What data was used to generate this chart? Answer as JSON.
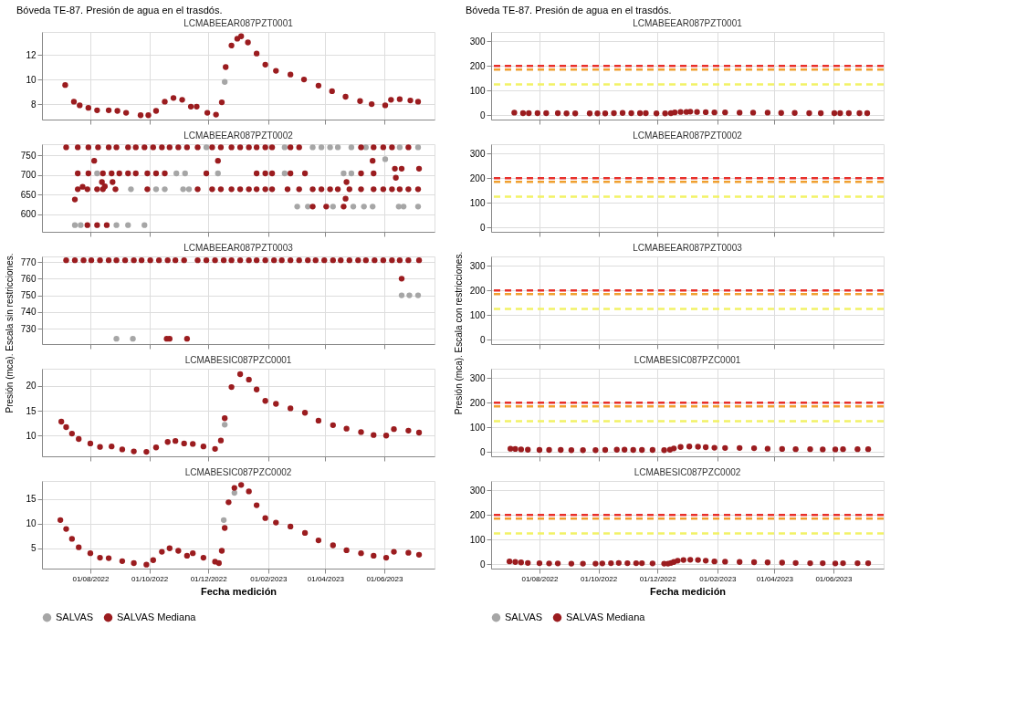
{
  "chart_data": [
    {
      "type": "scatter",
      "title": "Bóveda TE-87. Presión de agua en el trasdós.",
      "subtitle": "LCMABEEAR087PZT0001",
      "marker": "circle",
      "grid": true,
      "tick_labels": "y",
      "xlim": [
        "2022-06-12",
        "2023-07-23"
      ],
      "xticks": [
        {
          "value": "2022-08-01",
          "label": null
        },
        {
          "value": "2022-10-01",
          "label": null
        },
        {
          "value": "2022-12-01",
          "label": null
        },
        {
          "value": "2023-02-01",
          "label": null
        },
        {
          "value": "2023-04-01",
          "label": null
        },
        {
          "value": "2023-06-01",
          "label": null
        }
      ],
      "ylim": [
        6.75,
        13.85
      ],
      "yticks": [
        8,
        10,
        12
      ],
      "series": [
        {
          "color": "#a6a6a6",
          "x": [
            "2022-12-18"
          ],
          "values": [
            9.8
          ]
        },
        {
          "color": "#9b1c1f",
          "x": [
            "2022-07-06",
            "2022-07-15",
            "2022-07-21",
            "2022-07-30",
            "2022-08-08",
            "2022-08-20",
            "2022-08-29",
            "2022-09-07",
            "2022-09-22",
            "2022-09-30",
            "2022-10-08",
            "2022-10-17",
            "2022-10-26",
            "2022-11-04",
            "2022-11-13",
            "2022-11-19",
            "2022-11-30",
            "2022-12-09",
            "2022-12-15",
            "2022-12-19",
            "2022-12-25",
            "2022-12-31",
            "2023-01-04",
            "2023-01-11",
            "2023-01-20",
            "2023-01-29",
            "2023-02-09",
            "2023-02-24",
            "2023-03-10",
            "2023-03-25",
            "2023-04-08",
            "2023-04-22",
            "2023-05-07",
            "2023-05-19",
            "2023-06-02",
            "2023-06-08",
            "2023-06-17",
            "2023-06-28",
            "2023-07-06"
          ],
          "values": [
            9.55,
            8.2,
            7.9,
            7.7,
            7.5,
            7.5,
            7.45,
            7.3,
            7.1,
            7.1,
            7.45,
            8.2,
            8.5,
            8.35,
            7.8,
            7.8,
            7.3,
            7.15,
            8.15,
            11,
            12.75,
            13.3,
            13.5,
            13.0,
            12.1,
            11.2,
            10.7,
            10.4,
            10.0,
            9.5,
            9.05,
            8.6,
            8.25,
            8.0,
            7.9,
            8.35,
            8.4,
            8.3,
            8.2
          ]
        }
      ]
    },
    {
      "type": "scatter",
      "subtitle": "LCMABEEAR087PZT0002",
      "marker": "circle",
      "grid": true,
      "tick_labels": "y",
      "xlim": [
        "2022-06-12",
        "2023-07-23"
      ],
      "xticks": [
        {
          "value": "2022-08-01",
          "label": null
        },
        {
          "value": "2022-10-01",
          "label": null
        },
        {
          "value": "2022-12-01",
          "label": null
        },
        {
          "value": "2023-02-01",
          "label": null
        },
        {
          "value": "2023-04-01",
          "label": null
        },
        {
          "value": "2023-06-01",
          "label": null
        }
      ],
      "ylim": [
        556,
        778
      ],
      "yticks": [
        600,
        650,
        700,
        750
      ],
      "series": [
        {
          "color": "#a6a6a6",
          "x": [
            "2022-11-29",
            "2023-02-18",
            "2023-03-19",
            "2023-03-28",
            "2023-04-06",
            "2023-04-14",
            "2023-04-28",
            "2023-05-13",
            "2023-06-17",
            "2023-07-06",
            "2022-08-08",
            "2022-10-29",
            "2022-11-07",
            "2022-12-11",
            "2023-02-18",
            "2023-04-20",
            "2023-04-28",
            "2022-09-12",
            "2022-10-08",
            "2022-10-17",
            "2022-11-05",
            "2022-11-11",
            "2023-03-03",
            "2023-03-14",
            "2023-04-09",
            "2023-04-30",
            "2023-05-11",
            "2023-05-20",
            "2023-06-16",
            "2023-06-21",
            "2023-07-06",
            "2022-07-16",
            "2022-07-22",
            "2022-08-28",
            "2022-09-09",
            "2022-09-26",
            "2023-06-02"
          ],
          "values": [
            770,
            770,
            770,
            770,
            770,
            770,
            770,
            770,
            770,
            770,
            704,
            704,
            704,
            704,
            704,
            704,
            704,
            664,
            664,
            664,
            664,
            664,
            620,
            620,
            620,
            620,
            620,
            620,
            620,
            620,
            620,
            573,
            573,
            573,
            573,
            573,
            740
          ]
        },
        {
          "color": "#9b1c1f",
          "x": [
            "2022-07-07",
            "2022-07-19",
            "2022-07-30",
            "2022-08-09",
            "2022-08-20",
            "2022-08-28",
            "2022-09-09",
            "2022-09-17",
            "2022-09-26",
            "2022-10-05",
            "2022-10-14",
            "2022-10-22",
            "2022-10-31",
            "2022-11-09",
            "2022-11-20",
            "2022-12-05",
            "2022-12-14",
            "2022-12-25",
            "2023-01-03",
            "2023-01-12",
            "2023-01-20",
            "2023-01-29",
            "2023-02-05",
            "2023-02-24",
            "2023-03-05",
            "2023-05-08",
            "2023-05-21",
            "2023-05-31",
            "2023-06-09",
            "2023-06-26",
            "2022-07-19",
            "2022-07-30",
            "2022-08-14",
            "2022-08-23",
            "2022-08-31",
            "2022-09-09",
            "2022-09-17",
            "2022-09-29",
            "2022-10-08",
            "2022-10-17",
            "2022-11-29",
            "2023-01-20",
            "2023-01-29",
            "2023-02-05",
            "2023-02-24",
            "2023-03-11",
            "2023-05-08",
            "2023-05-21",
            "2022-07-19",
            "2022-07-29",
            "2022-08-08",
            "2022-08-14",
            "2022-08-27",
            "2022-09-29",
            "2022-11-20",
            "2022-12-05",
            "2022-12-14",
            "2022-12-25",
            "2023-01-03",
            "2023-01-12",
            "2023-01-20",
            "2023-01-29",
            "2023-02-05",
            "2023-02-21",
            "2023-03-05",
            "2023-03-19",
            "2023-03-28",
            "2023-04-06",
            "2023-04-14",
            "2023-04-26",
            "2023-05-08",
            "2023-05-21",
            "2023-05-31",
            "2023-06-09",
            "2023-06-17",
            "2023-06-26",
            "2023-07-06",
            "2023-03-19",
            "2023-04-02",
            "2023-04-20",
            "2022-07-29",
            "2022-08-08",
            "2022-08-18",
            "2022-08-05",
            "2022-12-11",
            "2023-05-20",
            "2022-07-16",
            "2022-07-24",
            "2022-08-13",
            "2022-08-16",
            "2022-08-24",
            "2023-04-23",
            "2023-04-22",
            "2023-06-12",
            "2023-06-19",
            "2023-06-13",
            "2023-07-07"
          ],
          "values": [
            770,
            770,
            770,
            770,
            770,
            770,
            770,
            770,
            770,
            770,
            770,
            770,
            770,
            770,
            770,
            770,
            770,
            770,
            770,
            770,
            770,
            770,
            770,
            770,
            770,
            770,
            770,
            770,
            770,
            770,
            704,
            704,
            704,
            704,
            704,
            704,
            704,
            704,
            704,
            704,
            704,
            704,
            704,
            704,
            704,
            704,
            704,
            704,
            664,
            664,
            664,
            664,
            664,
            664,
            664,
            664,
            664,
            664,
            664,
            664,
            664,
            664,
            664,
            664,
            664,
            664,
            664,
            664,
            664,
            664,
            664,
            664,
            664,
            664,
            664,
            664,
            664,
            620,
            620,
            620,
            573,
            573,
            573,
            736,
            736,
            736,
            638,
            670,
            682,
            671,
            682,
            682,
            640,
            716,
            716,
            693,
            716
          ]
        }
      ]
    },
    {
      "type": "scatter",
      "subtitle": "LCMABEEAR087PZT0003",
      "ylabel": "Presión (mca). Escala sin restricciones.",
      "marker": "circle",
      "grid": true,
      "tick_labels": "y",
      "xlim": [
        "2022-06-12",
        "2023-07-23"
      ],
      "xticks": [
        {
          "value": "2022-08-01",
          "label": null
        },
        {
          "value": "2022-10-01",
          "label": null
        },
        {
          "value": "2022-12-01",
          "label": null
        },
        {
          "value": "2023-02-01",
          "label": null
        },
        {
          "value": "2023-04-01",
          "label": null
        },
        {
          "value": "2023-06-01",
          "label": null
        }
      ],
      "ylim": [
        720.8,
        773.3
      ],
      "yticks": [
        730,
        740,
        750,
        760,
        770
      ],
      "series": [
        {
          "color": "#a6a6a6",
          "x": [
            "2022-08-28",
            "2022-09-14",
            "2023-06-19",
            "2023-06-27",
            "2023-07-06"
          ],
          "values": [
            724,
            724,
            750,
            750,
            750
          ]
        },
        {
          "color": "#9b1c1f",
          "x": [
            "2022-07-07",
            "2022-07-16",
            "2022-07-25",
            "2022-08-02",
            "2022-08-11",
            "2022-08-20",
            "2022-08-28",
            "2022-09-06",
            "2022-09-15",
            "2022-09-23",
            "2022-10-02",
            "2022-10-11",
            "2022-10-20",
            "2022-10-28",
            "2022-11-06",
            "2022-11-20",
            "2022-11-29",
            "2022-12-08",
            "2022-12-17",
            "2022-12-25",
            "2023-01-03",
            "2023-01-12",
            "2023-01-20",
            "2023-01-29",
            "2023-02-07",
            "2023-02-15",
            "2023-02-24",
            "2023-03-05",
            "2023-03-14",
            "2023-03-22",
            "2023-03-31",
            "2023-04-09",
            "2023-04-17",
            "2023-04-26",
            "2023-05-05",
            "2023-05-13",
            "2023-05-22",
            "2023-05-31",
            "2023-06-09",
            "2023-06-17",
            "2023-06-26",
            "2023-07-07",
            "2023-06-19",
            "2022-10-19",
            "2022-10-22",
            "2022-11-09"
          ],
          "values": [
            771,
            771,
            771,
            771,
            771,
            771,
            771,
            771,
            771,
            771,
            771,
            771,
            771,
            771,
            771,
            771,
            771,
            771,
            771,
            771,
            771,
            771,
            771,
            771,
            771,
            771,
            771,
            771,
            771,
            771,
            771,
            771,
            771,
            771,
            771,
            771,
            771,
            771,
            771,
            771,
            771,
            771,
            760,
            724,
            724,
            724
          ]
        }
      ]
    },
    {
      "type": "scatter",
      "subtitle": "LCMABESIC087PZC0001",
      "marker": "circle",
      "grid": true,
      "tick_labels": "y",
      "xlim": [
        "2022-06-12",
        "2023-07-23"
      ],
      "xticks": [
        {
          "value": "2022-08-01",
          "label": null
        },
        {
          "value": "2022-10-01",
          "label": null
        },
        {
          "value": "2022-12-01",
          "label": null
        },
        {
          "value": "2023-02-01",
          "label": null
        },
        {
          "value": "2023-04-01",
          "label": null
        },
        {
          "value": "2023-06-01",
          "label": null
        }
      ],
      "ylim": [
        5.8,
        23.5
      ],
      "yticks": [
        10,
        15,
        20
      ],
      "series": [
        {
          "color": "#a6a6a6",
          "x": [
            "2022-12-18"
          ],
          "values": [
            12.2
          ]
        },
        {
          "color": "#9b1c1f",
          "x": [
            "2022-07-02",
            "2022-07-07",
            "2022-07-13",
            "2022-07-20",
            "2022-08-01",
            "2022-08-11",
            "2022-08-23",
            "2022-09-03",
            "2022-09-15",
            "2022-09-28",
            "2022-10-08",
            "2022-10-20",
            "2022-10-28",
            "2022-11-06",
            "2022-11-15",
            "2022-11-26",
            "2022-12-08",
            "2022-12-14",
            "2022-12-18",
            "2022-12-25",
            "2023-01-03",
            "2023-01-12",
            "2023-01-20",
            "2023-01-29",
            "2023-02-09",
            "2023-02-24",
            "2023-03-11",
            "2023-03-25",
            "2023-04-09",
            "2023-04-23",
            "2023-05-08",
            "2023-05-21",
            "2023-06-03",
            "2023-06-11",
            "2023-06-26",
            "2023-07-07"
          ],
          "values": [
            12.8,
            11.7,
            10.4,
            9.3,
            8.4,
            7.7,
            7.8,
            7.2,
            6.8,
            6.7,
            7.6,
            8.7,
            8.9,
            8.4,
            8.3,
            7.8,
            7.3,
            9,
            13.5,
            19.8,
            22.4,
            21.3,
            19.3,
            17,
            16.4,
            15.5,
            14.6,
            13,
            12.1,
            11.4,
            10.7,
            10.1,
            10,
            11.3,
            11,
            10.6
          ]
        }
      ]
    },
    {
      "type": "scatter",
      "subtitle": "LCMABESIC087PZC0002",
      "xlabel": "Fecha medición",
      "legend": "bottom",
      "marker": "circle",
      "grid": true,
      "xlim": [
        "2022-06-12",
        "2023-07-23"
      ],
      "xticks": [
        {
          "value": "2022-08-01",
          "label": "01/08/2022"
        },
        {
          "value": "2022-10-01",
          "label": "01/10/2022"
        },
        {
          "value": "2022-12-01",
          "label": "01/12/2022"
        },
        {
          "value": "2023-02-01",
          "label": "01/02/2023"
        },
        {
          "value": "2023-04-01",
          "label": "01/04/2023"
        },
        {
          "value": "2023-06-01",
          "label": "01/06/2023"
        }
      ],
      "ylim": [
        0.9,
        18.6
      ],
      "yticks": [
        5,
        10,
        15
      ],
      "series": [
        {
          "name": "SALVAS",
          "color": "#a6a6a6",
          "x": [
            "2022-12-17",
            "2022-12-28"
          ],
          "values": [
            10.7,
            16.2
          ]
        },
        {
          "name": "SALVAS Mediana",
          "color": "#9b1c1f",
          "x": [
            "2022-07-01",
            "2022-07-07",
            "2022-07-13",
            "2022-07-20",
            "2022-08-01",
            "2022-08-11",
            "2022-08-20",
            "2022-09-03",
            "2022-09-15",
            "2022-09-28",
            "2022-10-05",
            "2022-10-14",
            "2022-10-22",
            "2022-10-31",
            "2022-11-09",
            "2022-11-15",
            "2022-11-26",
            "2022-12-08",
            "2022-12-12",
            "2022-12-15",
            "2022-12-18",
            "2022-12-22",
            "2022-12-28",
            "2023-01-04",
            "2023-01-12",
            "2023-01-20",
            "2023-01-29",
            "2023-02-09",
            "2023-02-24",
            "2023-03-11",
            "2023-03-25",
            "2023-04-09",
            "2023-04-23",
            "2023-05-08",
            "2023-05-21",
            "2023-06-03",
            "2023-06-11",
            "2023-06-26",
            "2023-07-07"
          ],
          "values": [
            10.7,
            8.9,
            6.9,
            5.2,
            4,
            3.1,
            3.0,
            2.4,
            2.0,
            1.7,
            2.6,
            4.3,
            5,
            4.5,
            3.5,
            4.0,
            3.1,
            2.3,
            2.0,
            4.5,
            9.1,
            14.3,
            17.2,
            17.8,
            16.5,
            13.7,
            11.1,
            10.2,
            9.4,
            8.1,
            6.6,
            5.6,
            4.6,
            4,
            3.5,
            3.1,
            4.3,
            4.1,
            3.7
          ]
        }
      ]
    },
    {
      "type": "scatter",
      "title": "Bóveda TE-87. Presión de agua en el trasdós.",
      "subtitle": "LCMABEEAR087PZT0001",
      "marker": "circle",
      "grid": true,
      "tick_labels": "y",
      "xlim": [
        "2022-06-12",
        "2023-07-23"
      ],
      "xticks": [
        {
          "value": "2022-08-01",
          "label": null
        },
        {
          "value": "2022-10-01",
          "label": null
        },
        {
          "value": "2022-12-01",
          "label": null
        },
        {
          "value": "2023-02-01",
          "label": null
        },
        {
          "value": "2023-04-01",
          "label": null
        },
        {
          "value": "2023-06-01",
          "label": null
        }
      ],
      "ylim": [
        -18,
        338
      ],
      "yticks": [
        0,
        100,
        200,
        300
      ],
      "ref_lines": [
        {
          "axis": "y",
          "value": 200,
          "color": "#e8302a",
          "line_style": "dashed"
        },
        {
          "axis": "y",
          "value": 185,
          "color": "#f0a030",
          "line_style": "dashed"
        },
        {
          "axis": "y",
          "value": 125,
          "color": "#f2f266",
          "line_style": "dashed"
        }
      ],
      "series": [
        {
          "color": "#9b1c1f",
          "x": [
            "2022-07-06",
            "2022-07-15",
            "2022-07-21",
            "2022-07-30",
            "2022-08-08",
            "2022-08-20",
            "2022-08-29",
            "2022-09-07",
            "2022-09-22",
            "2022-09-30",
            "2022-10-08",
            "2022-10-17",
            "2022-10-26",
            "2022-11-04",
            "2022-11-13",
            "2022-11-19",
            "2022-11-30",
            "2022-12-09",
            "2022-12-15",
            "2022-12-19",
            "2022-12-25",
            "2022-12-31",
            "2023-01-04",
            "2023-01-11",
            "2023-01-20",
            "2023-01-29",
            "2023-02-09",
            "2023-02-24",
            "2023-03-10",
            "2023-03-25",
            "2023-04-08",
            "2023-04-22",
            "2023-05-07",
            "2023-05-19",
            "2023-06-02",
            "2023-06-08",
            "2023-06-17",
            "2023-06-28",
            "2023-07-06"
          ],
          "values": [
            10,
            8,
            8,
            8,
            8,
            8,
            7,
            7,
            7,
            7,
            7,
            8,
            9,
            8,
            8,
            8,
            7,
            7,
            8,
            11,
            13,
            13,
            14,
            13,
            12,
            11,
            11,
            10,
            10,
            10,
            9,
            9,
            8,
            8,
            8,
            8,
            8,
            8,
            8
          ]
        }
      ]
    },
    {
      "type": "scatter",
      "subtitle": "LCMABEEAR087PZT0002",
      "grid": true,
      "tick_labels": "y",
      "xlim": [
        "2022-06-12",
        "2023-07-23"
      ],
      "xticks": [
        {
          "value": "2022-08-01",
          "label": null
        },
        {
          "value": "2022-10-01",
          "label": null
        },
        {
          "value": "2022-12-01",
          "label": null
        },
        {
          "value": "2023-02-01",
          "label": null
        },
        {
          "value": "2023-04-01",
          "label": null
        },
        {
          "value": "2023-06-01",
          "label": null
        }
      ],
      "ylim": [
        -18,
        338
      ],
      "yticks": [
        0,
        100,
        200,
        300
      ],
      "ref_lines": [
        {
          "axis": "y",
          "value": 200,
          "color": "#e8302a",
          "line_style": "dashed"
        },
        {
          "axis": "y",
          "value": 185,
          "color": "#f0a030",
          "line_style": "dashed"
        },
        {
          "axis": "y",
          "value": 125,
          "color": "#f2f266",
          "line_style": "dashed"
        }
      ]
    },
    {
      "type": "scatter",
      "subtitle": "LCMABEEAR087PZT0003",
      "ylabel": "Presión (mca). Escala con restricciones.",
      "grid": true,
      "tick_labels": "y",
      "xlim": [
        "2022-06-12",
        "2023-07-23"
      ],
      "xticks": [
        {
          "value": "2022-08-01",
          "label": null
        },
        {
          "value": "2022-10-01",
          "label": null
        },
        {
          "value": "2022-12-01",
          "label": null
        },
        {
          "value": "2023-02-01",
          "label": null
        },
        {
          "value": "2023-04-01",
          "label": null
        },
        {
          "value": "2023-06-01",
          "label": null
        }
      ],
      "ylim": [
        -18,
        338
      ],
      "yticks": [
        0,
        100,
        200,
        300
      ],
      "ref_lines": [
        {
          "axis": "y",
          "value": 200,
          "color": "#e8302a",
          "line_style": "dashed"
        },
        {
          "axis": "y",
          "value": 185,
          "color": "#f0a030",
          "line_style": "dashed"
        },
        {
          "axis": "y",
          "value": 125,
          "color": "#f2f266",
          "line_style": "dashed"
        }
      ]
    },
    {
      "type": "scatter",
      "subtitle": "LCMABESIC087PZC0001",
      "marker": "circle",
      "grid": true,
      "tick_labels": "y",
      "xlim": [
        "2022-06-12",
        "2023-07-23"
      ],
      "xticks": [
        {
          "value": "2022-08-01",
          "label": null
        },
        {
          "value": "2022-10-01",
          "label": null
        },
        {
          "value": "2022-12-01",
          "label": null
        },
        {
          "value": "2023-02-01",
          "label": null
        },
        {
          "value": "2023-04-01",
          "label": null
        },
        {
          "value": "2023-06-01",
          "label": null
        }
      ],
      "ylim": [
        -18,
        338
      ],
      "yticks": [
        0,
        100,
        200,
        300
      ],
      "ref_lines": [
        {
          "axis": "y",
          "value": 200,
          "color": "#e8302a",
          "line_style": "dashed"
        },
        {
          "axis": "y",
          "value": 185,
          "color": "#f0a030",
          "line_style": "dashed"
        },
        {
          "axis": "y",
          "value": 125,
          "color": "#f2f266",
          "line_style": "dashed"
        }
      ],
      "series": [
        {
          "color": "#9b1c1f",
          "x": [
            "2022-07-02",
            "2022-07-07",
            "2022-07-13",
            "2022-07-20",
            "2022-08-01",
            "2022-08-11",
            "2022-08-23",
            "2022-09-03",
            "2022-09-15",
            "2022-09-28",
            "2022-10-08",
            "2022-10-20",
            "2022-10-28",
            "2022-11-06",
            "2022-11-15",
            "2022-11-26",
            "2022-12-08",
            "2022-12-14",
            "2022-12-18",
            "2022-12-25",
            "2023-01-03",
            "2023-01-12",
            "2023-01-20",
            "2023-01-29",
            "2023-02-09",
            "2023-02-24",
            "2023-03-11",
            "2023-03-25",
            "2023-04-09",
            "2023-04-23",
            "2023-05-08",
            "2023-05-21",
            "2023-06-03",
            "2023-06-11",
            "2023-06-26",
            "2023-07-07"
          ],
          "values": [
            13,
            12,
            10,
            9,
            8,
            8,
            8,
            7,
            7,
            7,
            8,
            9,
            9,
            8,
            8,
            8,
            7,
            9,
            14,
            20,
            22,
            21,
            19,
            17,
            16,
            16,
            15,
            13,
            12,
            11,
            11,
            10,
            10,
            11,
            11,
            11
          ]
        }
      ]
    },
    {
      "type": "scatter",
      "subtitle": "LCMABESIC087PZC0002",
      "xlabel": "Fecha medición",
      "legend": "bottom",
      "marker": "circle",
      "grid": true,
      "xlim": [
        "2022-06-12",
        "2023-07-23"
      ],
      "xticks": [
        {
          "value": "2022-08-01",
          "label": "01/08/2022"
        },
        {
          "value": "2022-10-01",
          "label": "01/10/2022"
        },
        {
          "value": "2022-12-01",
          "label": "01/12/2022"
        },
        {
          "value": "2023-02-01",
          "label": "01/02/2023"
        },
        {
          "value": "2023-04-01",
          "label": "01/04/2023"
        },
        {
          "value": "2023-06-01",
          "label": "01/06/2023"
        }
      ],
      "ylim": [
        -18,
        338
      ],
      "yticks": [
        0,
        100,
        200,
        300
      ],
      "ref_lines": [
        {
          "axis": "y",
          "value": 200,
          "color": "#e8302a",
          "line_style": "dashed"
        },
        {
          "axis": "y",
          "value": 185,
          "color": "#f0a030",
          "line_style": "dashed"
        },
        {
          "axis": "y",
          "value": 125,
          "color": "#f2f266",
          "line_style": "dashed"
        }
      ],
      "series": [
        {
          "name": "SALVAS",
          "color": "#a6a6a6"
        },
        {
          "name": "SALVAS Mediana",
          "color": "#9b1c1f",
          "x": [
            "2022-07-01",
            "2022-07-07",
            "2022-07-13",
            "2022-07-20",
            "2022-08-01",
            "2022-08-11",
            "2022-08-20",
            "2022-09-03",
            "2022-09-15",
            "2022-09-28",
            "2022-10-05",
            "2022-10-14",
            "2022-10-22",
            "2022-10-31",
            "2022-11-09",
            "2022-11-15",
            "2022-11-26",
            "2022-12-08",
            "2022-12-12",
            "2022-12-15",
            "2022-12-18",
            "2022-12-22",
            "2022-12-28",
            "2023-01-04",
            "2023-01-12",
            "2023-01-20",
            "2023-01-29",
            "2023-02-09",
            "2023-02-24",
            "2023-03-11",
            "2023-03-25",
            "2023-04-09",
            "2023-04-23",
            "2023-05-08",
            "2023-05-21",
            "2023-06-03",
            "2023-06-11",
            "2023-06-26",
            "2023-07-07"
          ],
          "values": [
            11,
            9,
            7,
            5,
            4,
            3,
            3,
            2,
            2,
            2,
            3,
            4,
            5,
            4,
            4,
            4,
            3,
            2,
            2,
            5,
            9,
            14,
            17,
            18,
            17,
            14,
            11,
            10,
            9,
            8,
            7,
            6,
            5,
            4,
            4,
            3,
            4,
            4,
            4
          ]
        }
      ]
    }
  ]
}
